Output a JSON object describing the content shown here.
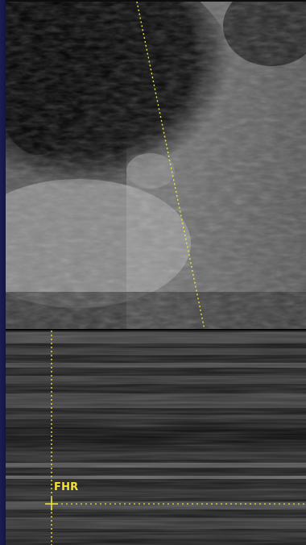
{
  "overlay": {
    "label_fhr": "FHR",
    "accent_color": "#e8e23a"
  },
  "icons": {
    "caliper": "cursor-crosshair-icon"
  }
}
